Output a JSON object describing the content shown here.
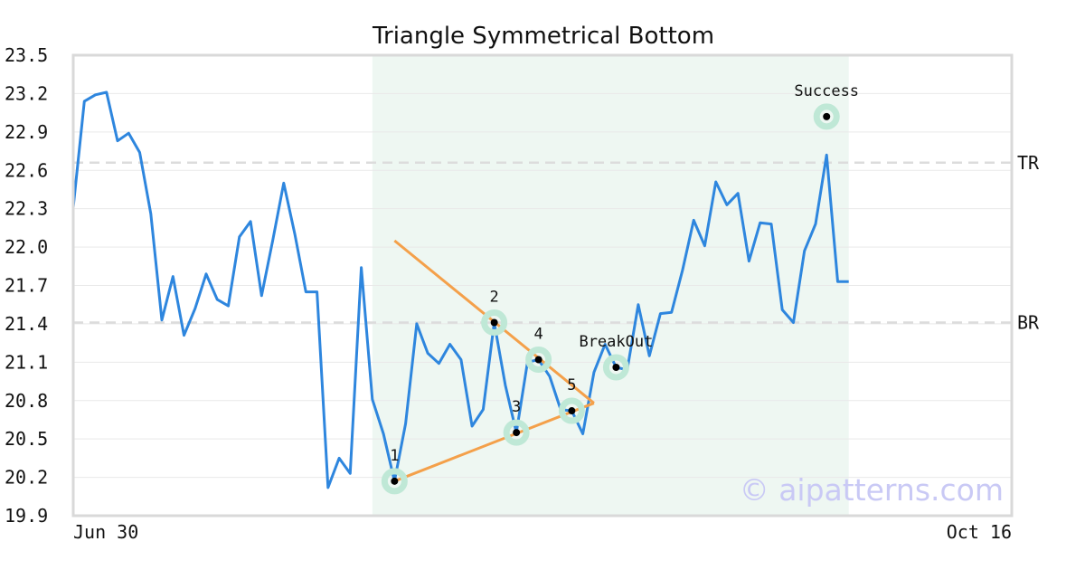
{
  "chart_data": {
    "type": "line",
    "title": "Triangle Symmetrical Bottom",
    "xlabel": "",
    "ylabel": "",
    "x_start_label": "Jun 30",
    "x_end_label": "Oct 16",
    "yticks": [
      "19.9",
      "20.2",
      "20.5",
      "20.8",
      "21.1",
      "21.4",
      "21.7",
      "22.0",
      "22.3",
      "22.6",
      "22.9",
      "23.2",
      "23.5"
    ],
    "ylim": [
      19.9,
      23.5
    ],
    "xlim": [
      0,
      77
    ],
    "grid": true,
    "legend": "none",
    "line_color": "#2e86de",
    "pattern_color": "#f4a04a",
    "highlight_color": "#eef7f2",
    "marker_color": "#bfe8d6",
    "series": [
      {
        "values": [
          22.31,
          23.14,
          23.19,
          23.21,
          22.83,
          22.89,
          22.74,
          22.26,
          21.43,
          21.77,
          21.31,
          21.52,
          21.79,
          21.59,
          21.54,
          22.08,
          22.2,
          21.62,
          22.05,
          22.5,
          22.1,
          21.65,
          21.65,
          20.12,
          20.35,
          20.23,
          21.84,
          20.81,
          20.54,
          20.17,
          20.62,
          21.4,
          21.17,
          21.09,
          21.24,
          21.12,
          20.6,
          20.73,
          21.41,
          20.92,
          20.55,
          21.1,
          21.12,
          20.99,
          20.73,
          20.72,
          20.54,
          21.02,
          21.24,
          21.06,
          21.04,
          21.55,
          21.15,
          21.48,
          21.49,
          21.82,
          22.21,
          22.01,
          22.51,
          22.33,
          22.42,
          21.89,
          22.19,
          22.18,
          21.51,
          21.41,
          21.97,
          22.18,
          22.72,
          21.73,
          21.73
        ]
      }
    ],
    "highlight_range": [
      27,
      70
    ],
    "reference_lines": [
      {
        "label": "TR",
        "value": 22.66
      },
      {
        "label": "BR",
        "value": 21.41
      }
    ],
    "pattern_lines": [
      {
        "from": [
          29,
          22.05
        ],
        "to": [
          47,
          20.78
        ]
      },
      {
        "from": [
          29,
          20.17
        ],
        "to": [
          47,
          20.78
        ]
      }
    ],
    "points": [
      {
        "label": "1",
        "x": 29,
        "y": 20.17
      },
      {
        "label": "2",
        "x": 38,
        "y": 21.41
      },
      {
        "label": "3",
        "x": 40,
        "y": 20.55
      },
      {
        "label": "4",
        "x": 42,
        "y": 21.12
      },
      {
        "label": "5",
        "x": 45,
        "y": 20.72
      },
      {
        "label": "BreakOut",
        "x": 49,
        "y": 21.06
      },
      {
        "label": "Success",
        "x": 68,
        "y": 23.02
      }
    ],
    "watermark": "© aipatterns.com"
  }
}
